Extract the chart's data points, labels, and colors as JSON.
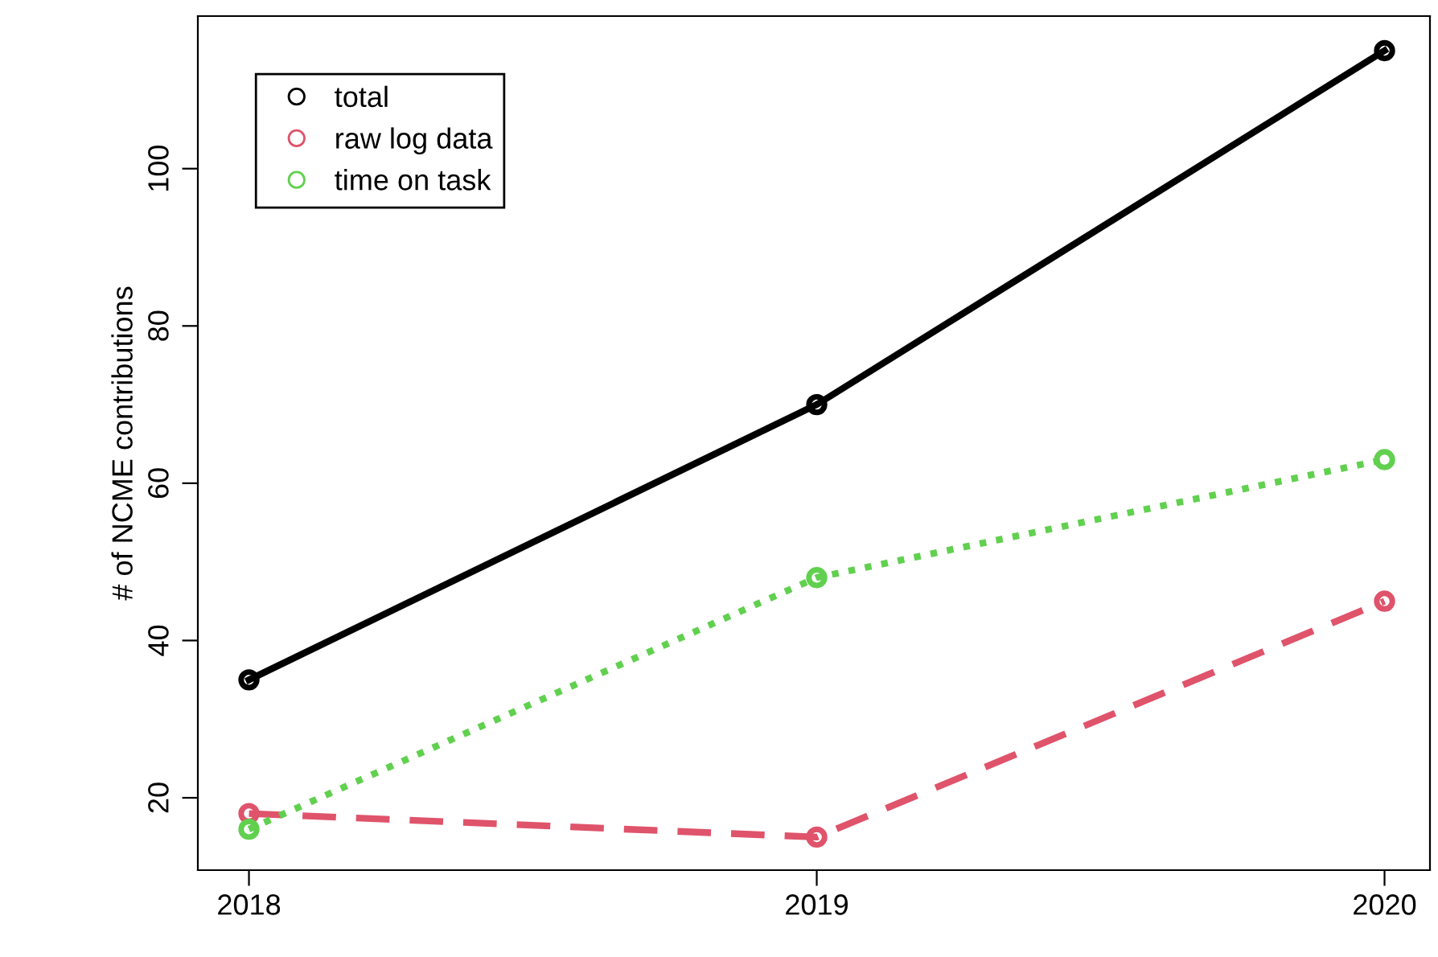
{
  "chart_data": {
    "type": "line",
    "ylabel": "# of NCME contributions",
    "x": [
      2018,
      2019,
      2020
    ],
    "series": [
      {
        "name": "total",
        "color": "#000000",
        "values": [
          35,
          70,
          115
        ],
        "line_style": "solid"
      },
      {
        "name": "raw log data",
        "color": "#df536b",
        "values": [
          18,
          15,
          45
        ],
        "line_style": "dashed"
      },
      {
        "name": "time on task",
        "color": "#61d04f",
        "values": [
          16,
          48,
          63
        ],
        "line_style": "dotted"
      }
    ],
    "xlim": [
      2017.91,
      2020.08
    ],
    "ylim": [
      10.8,
      119.4
    ],
    "xticks": [
      2018,
      2019,
      2020
    ],
    "yticks": [
      20,
      40,
      60,
      80,
      100
    ],
    "marker": "circle",
    "grid": false,
    "legend": "top left"
  }
}
